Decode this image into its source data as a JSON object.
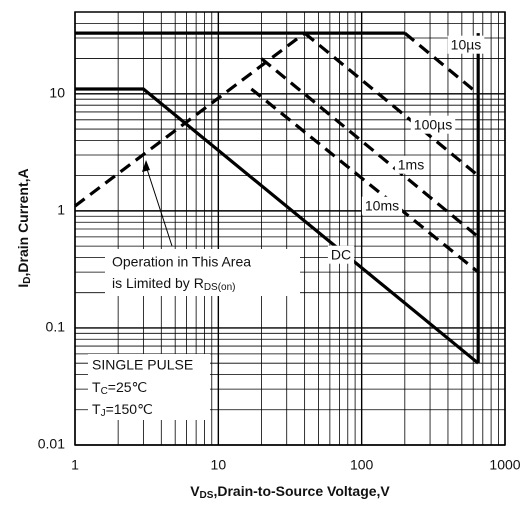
{
  "chart_data": {
    "type": "line",
    "x_label": {
      "main": "V",
      "sub": "DS",
      "rest": ",Drain-to-Source Voltage,V"
    },
    "y_label": {
      "main": "I",
      "sub": "D",
      "rest": ",Drain Current,A"
    },
    "xscale": "log",
    "yscale": "log",
    "xlim": [
      1,
      1000
    ],
    "ylim": [
      0.01,
      50
    ],
    "xticks": [
      1,
      10,
      100,
      1000
    ],
    "yticks": [
      0.01,
      0.1,
      1,
      10
    ],
    "grid": true,
    "series": [
      {
        "color": "#000000",
        "dash": true,
        "x": [
          1,
          40
        ],
        "values": [
          1.1,
          33
        ]
      },
      {
        "color": "#000000",
        "dash": false,
        "x": [
          1,
          200
        ],
        "values": [
          33,
          33
        ]
      },
      {
        "name": "10µs",
        "color": "#000000",
        "dash": true,
        "x": [
          200,
          650
        ],
        "values": [
          33,
          10
        ]
      },
      {
        "name": "100µs",
        "color": "#000000",
        "dash": true,
        "x": [
          40,
          650
        ],
        "values": [
          33,
          2
        ]
      },
      {
        "name": "1ms",
        "color": "#000000",
        "dash": true,
        "x": [
          20,
          650
        ],
        "values": [
          20,
          0.6
        ]
      },
      {
        "name": "10ms",
        "color": "#000000",
        "dash": true,
        "x": [
          17,
          650
        ],
        "values": [
          11,
          0.3
        ]
      },
      {
        "name": "DC",
        "color": "#000000",
        "dash": false,
        "x": [
          1,
          3,
          650
        ],
        "values": [
          11,
          11,
          0.05
        ]
      },
      {
        "color": "#000000",
        "dash": false,
        "x": [
          650,
          650
        ],
        "values": [
          33,
          0.05
        ]
      }
    ],
    "annotations": {
      "limit_line1": "Operation in This Area",
      "limit_line2": "is Limited by R",
      "limit_sub": "DS(on)",
      "pulse": "SINGLE PULSE",
      "tc_main": "T",
      "tc_sub": "C",
      "tc_rest": "=25℃",
      "tj_main": "T",
      "tj_sub": "J",
      "tj_rest": "=150℃"
    }
  }
}
